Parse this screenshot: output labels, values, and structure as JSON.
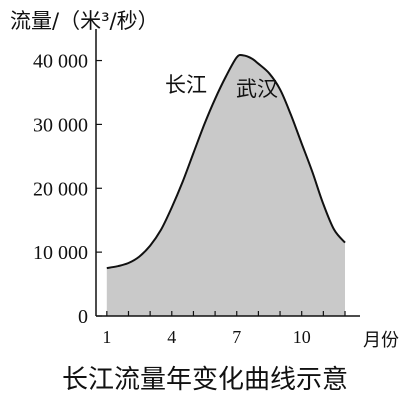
{
  "chart_data": {
    "type": "area",
    "title": "长江流量年变化曲线示意",
    "ylabel": "流量/（米³/秒）",
    "xlabel": "月份",
    "annotations": [
      {
        "id": "river",
        "text": "长江"
      },
      {
        "id": "station",
        "text": "武汉"
      }
    ],
    "x_ticks": [
      {
        "value": 1,
        "label": "1"
      },
      {
        "value": 4,
        "label": "4"
      },
      {
        "value": 7,
        "label": "7"
      },
      {
        "value": 10,
        "label": "10"
      }
    ],
    "y_ticks": [
      {
        "value": 0,
        "label": "0"
      },
      {
        "value": 10000,
        "label": "10 000"
      },
      {
        "value": 20000,
        "label": "20 000"
      },
      {
        "value": 30000,
        "label": "30 000"
      },
      {
        "value": 40000,
        "label": "40 000"
      }
    ],
    "xlim": [
      0.5,
      12.6
    ],
    "ylim": [
      0,
      44000
    ],
    "series": [
      {
        "x": [
          1,
          1.5,
          2,
          2.5,
          3,
          3.5,
          4,
          4.5,
          5,
          5.5,
          6,
          6.5,
          7,
          7.3,
          7.7,
          8,
          8.5,
          9,
          9.5,
          10,
          10.5,
          11,
          11.5,
          12
        ],
        "y": [
          7500,
          7800,
          8300,
          9300,
          11000,
          13500,
          17000,
          21000,
          25500,
          30000,
          34000,
          37500,
          40500,
          40800,
          40300,
          39500,
          38000,
          35500,
          31500,
          27000,
          22500,
          17500,
          13500,
          11500
        ]
      }
    ],
    "colors": {
      "fill": "#c9c9c9",
      "line": "#111111"
    },
    "grid": false,
    "legend": "none"
  }
}
